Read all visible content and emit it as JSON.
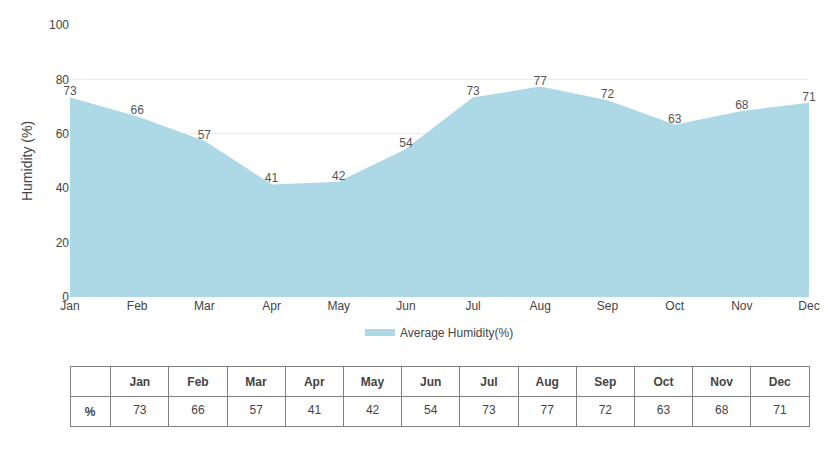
{
  "chart_data": {
    "type": "area",
    "categories": [
      "Jan",
      "Feb",
      "Mar",
      "Apr",
      "May",
      "Jun",
      "Jul",
      "Aug",
      "Sep",
      "Oct",
      "Nov",
      "Dec"
    ],
    "series": [
      {
        "name": "Average Humidity(%)",
        "color": "#ADD8E6",
        "values": [
          73,
          66,
          57,
          41,
          42,
          54,
          73,
          77,
          72,
          63,
          68,
          71
        ]
      }
    ],
    "ylabel": "Humidity (%)",
    "ylim": [
      0,
      100
    ],
    "yticks": [
      0,
      20,
      40,
      60,
      80,
      100
    ],
    "grid": true,
    "data_labels": true,
    "legend": "bottom",
    "table_row_label": "%"
  }
}
